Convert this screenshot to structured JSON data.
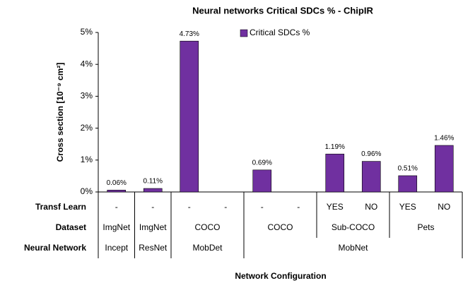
{
  "chart_data": {
    "type": "bar",
    "title": "Neural networks Critical SDCs % - ChipIR",
    "ylabel": "Cross section [10⁻⁹ cm²]",
    "xlabel": "Network Configuration",
    "legend": "top",
    "series": [
      {
        "name": "Critical SDCs %",
        "color": "#7030a0",
        "values": [
          0.06,
          0.11,
          4.73,
          null,
          0.69,
          null,
          1.19,
          0.96,
          0.51,
          1.46
        ],
        "value_labels": [
          "0.06%",
          "0.11%",
          "4.73%",
          null,
          "0.69%",
          null,
          "1.19%",
          "0.96%",
          "0.51%",
          "1.46%"
        ]
      }
    ],
    "row_labels": [
      "Transf Learn",
      "Dataset",
      "Neural Network"
    ],
    "categories": [
      "-",
      "-",
      "-",
      "-",
      "-",
      "-",
      "YES",
      "NO",
      "YES",
      "NO"
    ],
    "dataset_groups": [
      {
        "label": "ImgNet",
        "span": 1
      },
      {
        "label": "ImgNet",
        "span": 1
      },
      {
        "label": "COCO",
        "span": 2
      },
      {
        "label": "COCO",
        "span": 2
      },
      {
        "label": "Sub-COCO",
        "span": 2
      },
      {
        "label": "Pets",
        "span": 2
      }
    ],
    "network_groups": [
      {
        "label": "Incept",
        "span": 1
      },
      {
        "label": "ResNet",
        "span": 1
      },
      {
        "label": "MobDet",
        "span": 2
      },
      {
        "label": "MobNet",
        "span": 6
      }
    ],
    "ylim": [
      0,
      5
    ],
    "yticks": [
      {
        "value": 0,
        "label": "0%"
      },
      {
        "value": 1,
        "label": "1%"
      },
      {
        "value": 2,
        "label": "2%"
      },
      {
        "value": 3,
        "label": "3%"
      },
      {
        "value": 4,
        "label": "4%"
      },
      {
        "value": 5,
        "label": "5%"
      }
    ]
  }
}
